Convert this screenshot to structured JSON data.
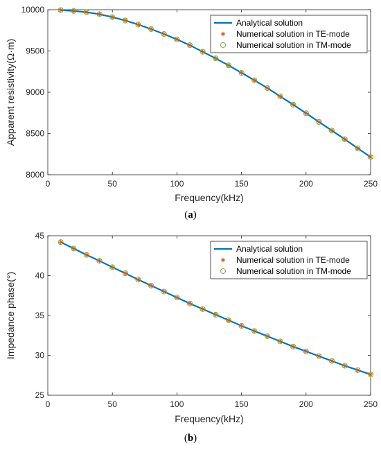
{
  "colors": {
    "analytical": "#0072BD",
    "te": "#D95319",
    "tm": "#77AC30",
    "axis": "#262626"
  },
  "panels": [
    {
      "caption": {
        "open": "(",
        "letter": "a",
        "close": ")"
      }
    },
    {
      "caption": {
        "open": "(",
        "letter": "b",
        "close": ")"
      }
    }
  ],
  "chart_data": [
    {
      "type": "line",
      "xlabel": "Frequency(kHz)",
      "ylabel": "Apparent resistivity(Ω·m)",
      "xlim": [
        0,
        250
      ],
      "ylim": [
        8000,
        10000
      ],
      "xticks": [
        0,
        50,
        100,
        150,
        200,
        250
      ],
      "yticks": [
        8000,
        8500,
        9000,
        9500,
        10000
      ],
      "legend_position": "top-right",
      "x": [
        10,
        20,
        30,
        40,
        50,
        60,
        70,
        80,
        90,
        100,
        110,
        120,
        130,
        140,
        150,
        160,
        170,
        180,
        190,
        200,
        210,
        220,
        230,
        240,
        250
      ],
      "series": [
        {
          "name": "Analytical solution",
          "style": "line",
          "values": [
            9995,
            9985,
            9970,
            9945,
            9910,
            9870,
            9820,
            9765,
            9705,
            9640,
            9570,
            9490,
            9410,
            9325,
            9235,
            9145,
            9050,
            8950,
            8850,
            8745,
            8640,
            8535,
            8430,
            8320,
            8215
          ]
        },
        {
          "name": "Numerical solution in TE-mode",
          "style": "star",
          "values": [
            9995,
            9985,
            9970,
            9945,
            9910,
            9870,
            9820,
            9765,
            9705,
            9640,
            9570,
            9490,
            9410,
            9325,
            9235,
            9145,
            9050,
            8950,
            8850,
            8745,
            8640,
            8535,
            8430,
            8320,
            8215
          ]
        },
        {
          "name": "Numerical solution in TM-mode",
          "style": "circle",
          "values": [
            9995,
            9985,
            9970,
            9945,
            9910,
            9870,
            9820,
            9765,
            9705,
            9640,
            9570,
            9490,
            9410,
            9325,
            9235,
            9145,
            9050,
            8950,
            8850,
            8745,
            8640,
            8535,
            8430,
            8320,
            8215
          ]
        }
      ]
    },
    {
      "type": "line",
      "xlabel": "Frequency(kHz)",
      "ylabel": "Impedance phase(°)",
      "xlim": [
        0,
        250
      ],
      "ylim": [
        25,
        45
      ],
      "xticks": [
        0,
        50,
        100,
        150,
        200,
        250
      ],
      "yticks": [
        25,
        30,
        35,
        40,
        45
      ],
      "legend_position": "top-right",
      "x": [
        10,
        20,
        30,
        40,
        50,
        60,
        70,
        80,
        90,
        100,
        110,
        120,
        130,
        140,
        150,
        160,
        170,
        180,
        190,
        200,
        210,
        220,
        230,
        240,
        250
      ],
      "series": [
        {
          "name": "Analytical solution",
          "style": "line",
          "values": [
            44.2,
            43.4,
            42.6,
            41.85,
            41.05,
            40.3,
            39.5,
            38.75,
            38.0,
            37.25,
            36.5,
            35.8,
            35.1,
            34.4,
            33.7,
            33.05,
            32.4,
            31.75,
            31.1,
            30.5,
            29.9,
            29.3,
            28.7,
            28.15,
            27.6
          ]
        },
        {
          "name": "Numerical solution in TE-mode",
          "style": "star",
          "values": [
            44.2,
            43.4,
            42.6,
            41.85,
            41.05,
            40.3,
            39.5,
            38.75,
            38.0,
            37.25,
            36.5,
            35.8,
            35.1,
            34.4,
            33.7,
            33.05,
            32.4,
            31.75,
            31.1,
            30.5,
            29.9,
            29.3,
            28.7,
            28.15,
            27.6
          ]
        },
        {
          "name": "Numerical solution in TM-mode",
          "style": "circle",
          "values": [
            44.2,
            43.4,
            42.6,
            41.85,
            41.05,
            40.3,
            39.5,
            38.75,
            38.0,
            37.25,
            36.5,
            35.8,
            35.1,
            34.4,
            33.7,
            33.05,
            32.4,
            31.75,
            31.1,
            30.5,
            29.9,
            29.3,
            28.7,
            28.15,
            27.6
          ]
        }
      ]
    }
  ]
}
